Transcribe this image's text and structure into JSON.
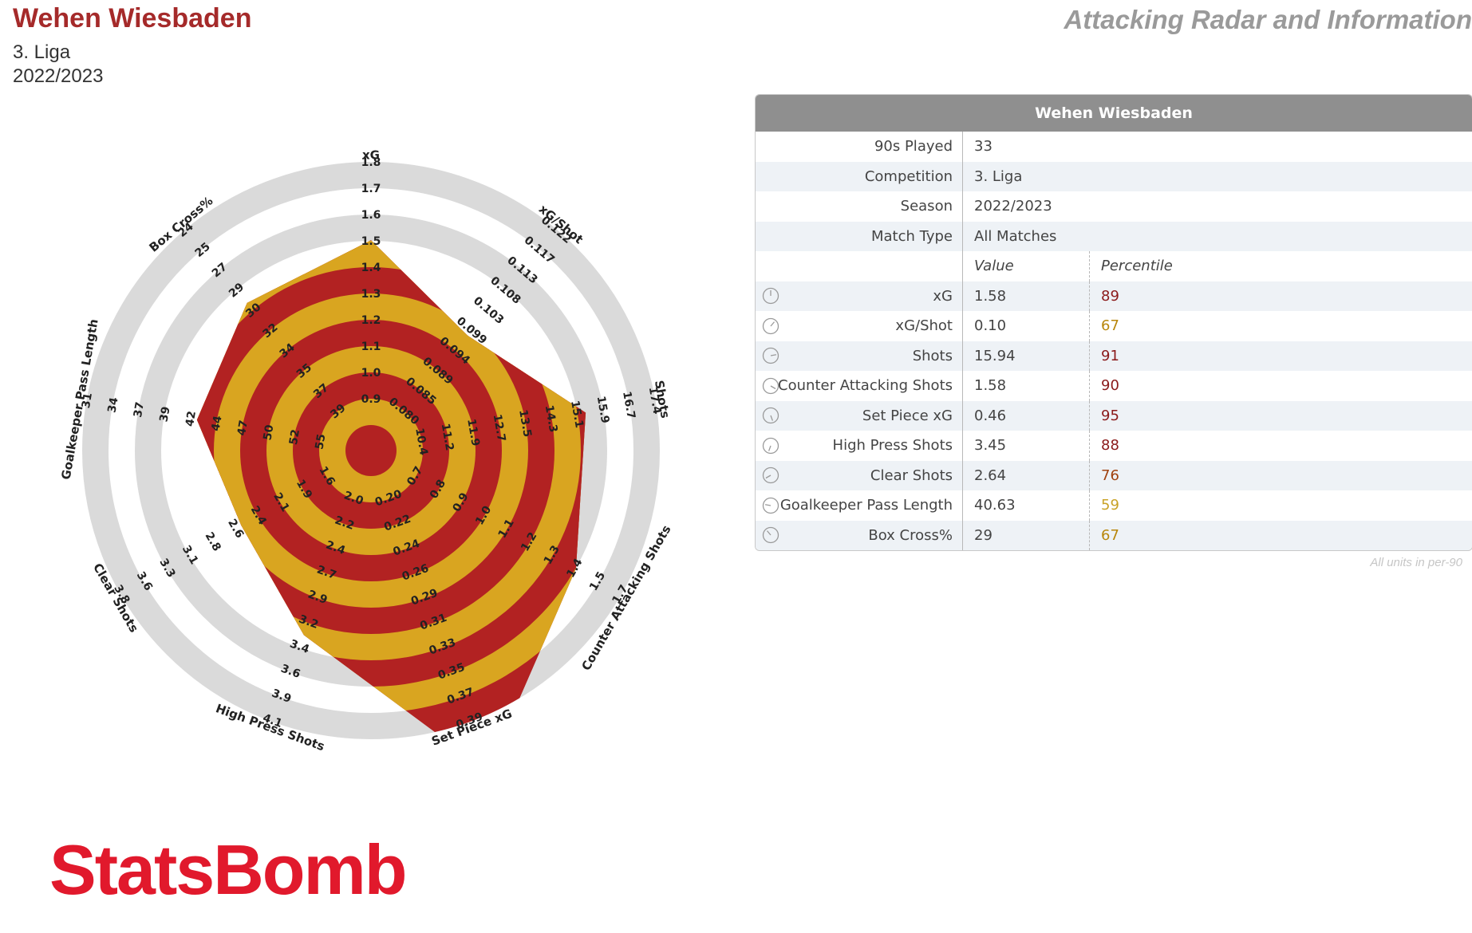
{
  "header": {
    "team": "Wehen Wiesbaden",
    "competition": "3. Liga",
    "season": "2022/2023",
    "report_title": "Attacking Radar and Information"
  },
  "colors": {
    "ring_a": "#b22222",
    "ring_b": "#d9a520",
    "band": "#dadada",
    "title": "#a52a2a",
    "pct_high": "#8b1a1a",
    "pct_mid": "#b8860b"
  },
  "chart_data": {
    "type": "radar",
    "title": "",
    "metrics": [
      "xG",
      "xG/Shot",
      "Shots",
      "Counter Attacking Shots",
      "Set Piece xG",
      "High Press Shots",
      "Clear Shots",
      "Goalkeeper Pass Length",
      "Box Cross%"
    ],
    "values": [
      1.58,
      0.1,
      15.94,
      1.58,
      0.46,
      3.45,
      2.64,
      40.63,
      29
    ],
    "percentiles": [
      89,
      67,
      91,
      90,
      95,
      88,
      76,
      59,
      67
    ],
    "axes": [
      {
        "label": "xG",
        "ticks": [
          "0.9",
          "1.0",
          "1.1",
          "1.2",
          "1.3",
          "1.4",
          "1.5",
          "1.6",
          "1.7",
          "1.8"
        ],
        "min": 0.8,
        "max": 1.8
      },
      {
        "label": "xG/Shot",
        "ticks": [
          "0.080",
          "0.085",
          "0.089",
          "0.094",
          "0.099",
          "0.103",
          "0.108",
          "0.113",
          "0.117",
          "0.122"
        ],
        "min": 0.0756,
        "max": 0.122
      },
      {
        "label": "Shots",
        "ticks": [
          "10.4",
          "11.2",
          "11.9",
          "12.7",
          "13.5",
          "14.3",
          "15.1",
          "15.9",
          "16.7",
          "17.4"
        ],
        "min": 9.62,
        "max": 17.4
      },
      {
        "label": "Counter Attacking Shots",
        "ticks": [
          "0.7",
          "0.8",
          "0.9",
          "1.0",
          "1.1",
          "1.2",
          "1.3",
          "1.4",
          "1.5",
          "1.7"
        ],
        "min": 0.6,
        "max": 1.7
      },
      {
        "label": "Set Piece xG",
        "ticks": [
          "0.20",
          "0.22",
          "0.24",
          "0.26",
          "0.29",
          "0.31",
          "0.33",
          "0.35",
          "0.37",
          "0.39"
        ],
        "min": 0.18,
        "max": 0.39
      },
      {
        "label": "High Press Shots",
        "ticks": [
          "2.0",
          "2.2",
          "2.4",
          "2.7",
          "2.9",
          "3.2",
          "3.4",
          "3.6",
          "3.9",
          "4.1"
        ],
        "min": 1.77,
        "max": 4.1
      },
      {
        "label": "Clear Shots",
        "ticks": [
          "1.6",
          "1.9",
          "2.1",
          "2.4",
          "2.6",
          "2.8",
          "3.1",
          "3.3",
          "3.6",
          "3.8"
        ],
        "min": 1.36,
        "max": 3.8
      },
      {
        "label": "Goalkeeper Pass Length",
        "ticks": [
          "55",
          "52",
          "50",
          "47",
          "44",
          "42",
          "39",
          "37",
          "34",
          "31"
        ],
        "min": 57.6,
        "max": 31
      },
      {
        "label": "Box Cross%",
        "ticks": [
          "39",
          "37",
          "35",
          "34",
          "32",
          "30",
          "29",
          "27",
          "25",
          "24"
        ],
        "min": 41,
        "max": 24
      }
    ]
  },
  "table": {
    "header": "Wehen Wiesbaden",
    "info_rows": [
      {
        "label": "90s Played",
        "value": "33"
      },
      {
        "label": "Competition",
        "value": "3. Liga"
      },
      {
        "label": "Season",
        "value": "2022/2023"
      },
      {
        "label": "Match Type",
        "value": "All Matches"
      }
    ],
    "col_value": "Value",
    "col_percentile": "Percentile",
    "metric_rows": [
      {
        "label": "xG",
        "value": "1.58",
        "percentile": "89",
        "pct_color": "#8b1a1a"
      },
      {
        "label": "xG/Shot",
        "value": "0.10",
        "percentile": "67",
        "pct_color": "#b8860b"
      },
      {
        "label": "Shots",
        "value": "15.94",
        "percentile": "91",
        "pct_color": "#8b1a1a"
      },
      {
        "label": "Counter Attacking Shots",
        "value": "1.58",
        "percentile": "90",
        "pct_color": "#8b1a1a"
      },
      {
        "label": "Set Piece xG",
        "value": "0.46",
        "percentile": "95",
        "pct_color": "#8b1a1a"
      },
      {
        "label": "High Press Shots",
        "value": "3.45",
        "percentile": "88",
        "pct_color": "#8b1a1a"
      },
      {
        "label": "Clear Shots",
        "value": "2.64",
        "percentile": "76",
        "pct_color": "#a0420f"
      },
      {
        "label": "Goalkeeper Pass Length",
        "value": "40.63",
        "percentile": "59",
        "pct_color": "#c9a227"
      },
      {
        "label": "Box Cross%",
        "value": "29",
        "percentile": "67",
        "pct_color": "#b8860b"
      }
    ],
    "icons": [
      "clock-icon",
      "clock-icon",
      "clock-icon",
      "clock-icon",
      "clock-icon",
      "clock-icon",
      "clock-icon",
      "clock-icon",
      "clock-icon"
    ]
  },
  "footnote": "All units in per-90",
  "brand": "StatsBomb"
}
